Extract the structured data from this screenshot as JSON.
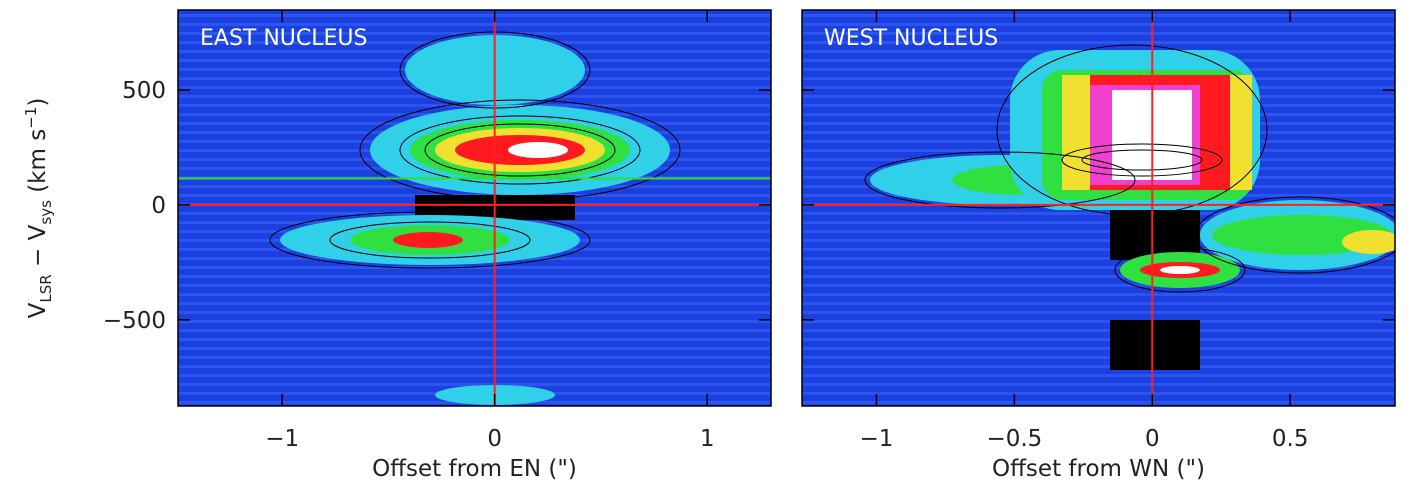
{
  "chart_data": [
    {
      "type": "image",
      "title": "EAST NUCLEUS",
      "xlabel": "Offset from EN (\")",
      "ylabel": {
        "v": "V",
        "sub1": "LSR",
        "mid": " − V",
        "sub2": "sys",
        "unit": " (km s",
        "sup": "−1",
        "close": ")"
      },
      "xlim": [
        -1.49,
        1.3
      ],
      "ylim": [
        -875,
        848
      ],
      "xticks": [
        {
          "value": -1,
          "label": "−1"
        },
        0,
        1
      ],
      "yticks": [
        500,
        0,
        {
          "value": -500,
          "label": "−500"
        }
      ],
      "show_ytick_labels": true,
      "ref_lines": [
        {
          "axis": "x",
          "value": 0,
          "color": "#ff2020"
        },
        {
          "axis": "y",
          "value": 0,
          "color": "#ff2020"
        },
        {
          "axis": "y",
          "value": 115,
          "color": "#30e030"
        }
      ]
    },
    {
      "type": "image",
      "title": "WEST NUCLEUS",
      "xlabel": "Offset from WN (\")",
      "xlim": [
        -1.27,
        0.88
      ],
      "ylim": [
        -875,
        848
      ],
      "xticks": [
        {
          "value": -1,
          "label": "−1"
        },
        {
          "value": -0.5,
          "label": "−0.5"
        },
        0,
        0.5
      ],
      "yticks": [
        500,
        0,
        {
          "value": -500,
          "label": "−500"
        }
      ],
      "show_ytick_labels": false,
      "ref_lines": [
        {
          "axis": "x",
          "value": 0,
          "color": "#ff2020"
        },
        {
          "axis": "y",
          "value": 0,
          "color": "#ff2020"
        }
      ]
    }
  ]
}
